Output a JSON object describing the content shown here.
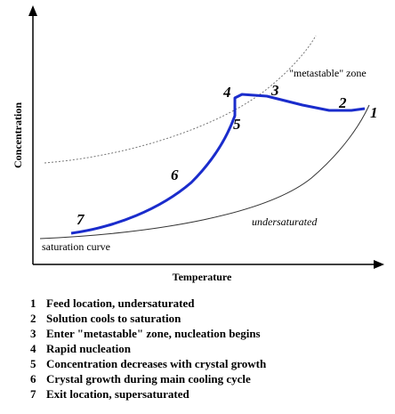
{
  "axes": {
    "y_label": "Concentration",
    "x_label": "Temperature"
  },
  "regions": {
    "metastable": "\"metastable\" zone",
    "undersaturated": "undersaturated",
    "saturation": "saturation curve"
  },
  "points": [
    "1",
    "2",
    "3",
    "4",
    "5",
    "6",
    "7"
  ],
  "legend": [
    {
      "number": "1",
      "text": "Feed location, undersaturated"
    },
    {
      "number": "2",
      "text": "Solution cools to saturation"
    },
    {
      "number": "3",
      "text": "Enter \"metastable\" zone, nucleation begins"
    },
    {
      "number": "4",
      "text": "Rapid nucleation"
    },
    {
      "number": "5",
      "text": "Concentration decreases with crystal growth"
    },
    {
      "number": "6",
      "text": "Crystal growth during main cooling cycle"
    },
    {
      "number": "7",
      "text": "Exit location, supersaturated"
    }
  ]
}
